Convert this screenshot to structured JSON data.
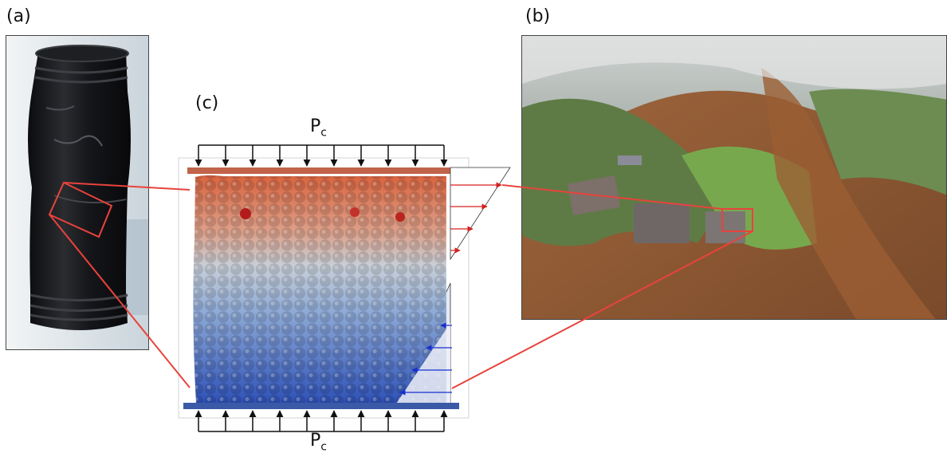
{
  "panels": {
    "a": {
      "label": "(a)"
    },
    "b": {
      "label": "(b)"
    },
    "c": {
      "label": "(c)"
    }
  },
  "pressure": {
    "symbol": "P",
    "subscript": "c"
  },
  "colors": {
    "highlight": "#e8433c",
    "top_platen": "#c0634a",
    "bottom_platen": "#3a5aa8",
    "shear_right_arrow": "#d62020",
    "shear_left_arrow": "#1a2fd0",
    "particle_hot": "#d9643f",
    "particle_cold": "#2f52b8"
  }
}
